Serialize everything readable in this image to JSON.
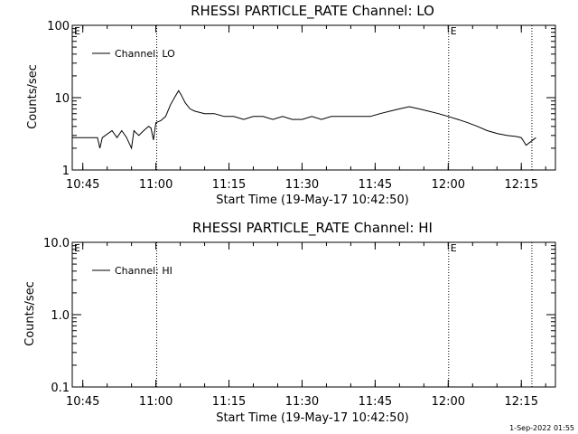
{
  "footer_stamp": "1-Sep-2022 01:55",
  "chart_data": [
    {
      "type": "line",
      "title": "RHESSI PARTICLE_RATE Channel: LO",
      "xlabel": "Start Time (19-May-17 10:42:50)",
      "ylabel": "Counts/sec",
      "yscale": "log",
      "ylim": [
        1,
        100
      ],
      "yticks": [
        "1",
        "10",
        "100"
      ],
      "xlim": [
        "10:42:50",
        "12:22:00"
      ],
      "xticks": [
        "10:45",
        "11:00",
        "11:15",
        "11:30",
        "11:45",
        "12:00",
        "12:15"
      ],
      "vlines": [
        "11:00:10",
        "12:00:05",
        "12:17:10"
      ],
      "markers": [
        {
          "label": "E",
          "x": "10:42:50"
        },
        {
          "label": "E",
          "x": "12:00:05"
        }
      ],
      "legend": {
        "entries": [
          "Channel: LO"
        ],
        "position": "top-left"
      },
      "series": [
        {
          "name": "Channel: LO",
          "x": [
            "10:42:50",
            "10:45:00",
            "10:48:00",
            "10:48:30",
            "10:49:00",
            "10:51:00",
            "10:52:00",
            "10:53:00",
            "10:54:00",
            "10:55:00",
            "10:55:30",
            "10:56:30",
            "10:57:30",
            "10:58:30",
            "10:59:00",
            "10:59:30",
            "11:00:00",
            "11:01:00",
            "11:02:00",
            "11:03:00",
            "11:04:00",
            "11:04:40",
            "11:05:10",
            "11:06:00",
            "11:07:00",
            "11:08:00",
            "11:10:00",
            "11:12:00",
            "11:14:00",
            "11:16:00",
            "11:18:00",
            "11:20:00",
            "11:22:00",
            "11:24:00",
            "11:26:00",
            "11:28:00",
            "11:30:00",
            "11:32:00",
            "11:34:00",
            "11:36:00",
            "11:38:00",
            "11:40:00",
            "11:42:00",
            "11:44:00",
            "11:46:00",
            "11:48:00",
            "11:50:00",
            "11:52:00",
            "11:54:00",
            "11:56:00",
            "11:58:00",
            "12:00:00",
            "12:02:00",
            "12:04:00",
            "12:06:00",
            "12:08:00",
            "12:10:00",
            "12:12:00",
            "12:14:00",
            "12:15:00",
            "12:16:00",
            "12:18:00"
          ],
          "values": [
            2.8,
            2.8,
            2.8,
            2.0,
            2.8,
            3.5,
            2.8,
            3.5,
            2.8,
            2.0,
            3.5,
            3.0,
            3.5,
            4.0,
            3.8,
            2.6,
            4.5,
            4.8,
            5.5,
            8.0,
            10.5,
            12.5,
            11.0,
            8.5,
            7.0,
            6.5,
            6.0,
            6.0,
            5.5,
            5.5,
            5.0,
            5.5,
            5.5,
            5.0,
            5.5,
            5.0,
            5.0,
            5.5,
            5.0,
            5.5,
            5.5,
            5.5,
            5.5,
            5.5,
            6.0,
            6.5,
            7.0,
            7.5,
            7.0,
            6.5,
            6.0,
            5.5,
            5.0,
            4.5,
            4.0,
            3.5,
            3.2,
            3.0,
            2.9,
            2.8,
            2.2,
            2.8
          ]
        }
      ]
    },
    {
      "type": "line",
      "title": "RHESSI PARTICLE_RATE Channel: HI",
      "xlabel": "Start Time (19-May-17 10:42:50)",
      "ylabel": "Counts/sec",
      "yscale": "log",
      "ylim": [
        0.1,
        10
      ],
      "yticks": [
        "0.1",
        "1.0",
        "10.0"
      ],
      "xlim": [
        "10:42:50",
        "12:22:00"
      ],
      "xticks": [
        "10:45",
        "11:00",
        "11:15",
        "11:30",
        "11:45",
        "12:00",
        "12:15"
      ],
      "vlines": [
        "11:00:10",
        "12:00:05",
        "12:17:10"
      ],
      "markers": [
        {
          "label": "E",
          "x": "10:42:50"
        },
        {
          "label": "E",
          "x": "12:00:05"
        }
      ],
      "legend": {
        "entries": [
          "Channel: HI"
        ],
        "position": "top-left"
      },
      "series": [
        {
          "name": "Channel: HI",
          "x": [],
          "values": []
        }
      ]
    }
  ]
}
